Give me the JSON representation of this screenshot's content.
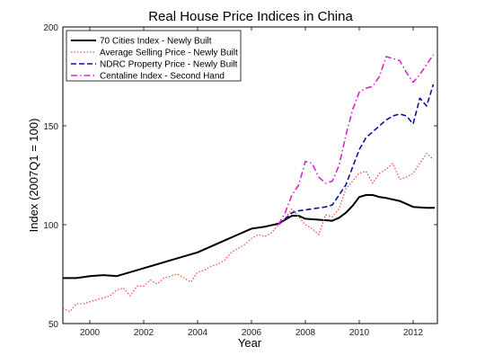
{
  "chart_data": {
    "type": "line",
    "title": "Real House Price Indices in China",
    "xlabel": "Year",
    "ylabel": "Index (2007Q1 = 100)",
    "xlim": [
      1999,
      2012.9
    ],
    "ylim": [
      50,
      200
    ],
    "xticks": [
      2000,
      2002,
      2004,
      2006,
      2008,
      2010,
      2012
    ],
    "yticks": [
      50,
      100,
      150,
      200
    ],
    "grid": false,
    "legend_position": "top-left",
    "series": [
      {
        "name": "70 Cities Index - Newly Built",
        "color": "#000000",
        "style": "solid",
        "x": [
          1999.0,
          1999.5,
          2000.0,
          2000.5,
          2001.0,
          2001.5,
          2002.0,
          2002.5,
          2003.0,
          2003.5,
          2004.0,
          2004.5,
          2005.0,
          2005.5,
          2006.0,
          2006.5,
          2007.0,
          2007.25,
          2007.5,
          2007.75,
          2008.0,
          2008.5,
          2009.0,
          2009.25,
          2009.5,
          2009.75,
          2010.0,
          2010.25,
          2010.5,
          2010.75,
          2011.0,
          2011.5,
          2012.0,
          2012.5,
          2012.8
        ],
        "y": [
          73,
          73,
          74,
          74.5,
          74,
          76,
          78,
          80,
          82,
          84,
          86,
          89,
          92,
          95,
          98,
          99,
          100.5,
          102.5,
          104.5,
          104.5,
          103,
          102.5,
          102,
          103.5,
          106,
          109.5,
          114,
          115,
          115,
          114,
          113.5,
          112,
          109,
          108.5,
          108.5
        ]
      },
      {
        "name": "Average Selling Price - Newly Built",
        "color": "#e8504a",
        "style": "dotted",
        "x": [
          1999.0,
          1999.25,
          1999.5,
          1999.75,
          2000.0,
          2000.25,
          2000.5,
          2000.75,
          2001.0,
          2001.25,
          2001.5,
          2001.75,
          2002.0,
          2002.25,
          2002.5,
          2002.75,
          2003.0,
          2003.25,
          2003.5,
          2003.75,
          2004.0,
          2004.25,
          2004.5,
          2004.75,
          2005.0,
          2005.25,
          2005.5,
          2005.75,
          2006.0,
          2006.25,
          2006.5,
          2006.75,
          2007.0,
          2007.25,
          2007.5,
          2007.75,
          2008.0,
          2008.25,
          2008.5,
          2008.75,
          2009.0,
          2009.25,
          2009.5,
          2009.75,
          2010.0,
          2010.25,
          2010.5,
          2010.75,
          2011.0,
          2011.25,
          2011.5,
          2011.75,
          2012.0,
          2012.25,
          2012.5,
          2012.75
        ],
        "y": [
          58,
          56,
          60,
          60,
          61,
          62,
          63,
          64,
          67,
          68,
          64,
          69,
          69,
          72,
          70,
          73,
          74,
          75,
          73,
          71,
          76,
          77,
          79,
          80,
          82,
          86,
          88,
          90,
          93,
          95,
          94,
          96,
          100,
          103,
          108,
          104,
          100,
          98,
          95,
          105,
          104,
          108,
          118,
          122,
          126,
          127,
          121,
          126,
          128,
          131,
          123,
          124,
          126,
          131,
          136,
          133
        ]
      },
      {
        "name": "NDRC Property Price - Newly Built",
        "color": "#1010a0",
        "style": "dashed",
        "x": [
          2007.0,
          2007.25,
          2007.5,
          2007.75,
          2008.0,
          2008.25,
          2008.5,
          2008.75,
          2009.0,
          2009.25,
          2009.5,
          2009.75,
          2010.0,
          2010.25,
          2010.5,
          2010.75,
          2011.0,
          2011.25,
          2011.5,
          2011.75,
          2012.0,
          2012.25,
          2012.5,
          2012.75
        ],
        "y": [
          100,
          103,
          106,
          107,
          107.5,
          108,
          108.5,
          109,
          110,
          115,
          120,
          129,
          138,
          144,
          147,
          150,
          153,
          155,
          156,
          155,
          151,
          164,
          160,
          171
        ]
      },
      {
        "name": "Centaline Index - Second Hand",
        "color": "#e020d0",
        "style": "dashdot",
        "x": [
          2007.0,
          2007.25,
          2007.5,
          2007.75,
          2008.0,
          2008.25,
          2008.5,
          2008.75,
          2009.0,
          2009.25,
          2009.5,
          2009.75,
          2010.0,
          2010.25,
          2010.5,
          2010.75,
          2011.0,
          2011.25,
          2011.5,
          2011.75,
          2012.0,
          2012.25,
          2012.5,
          2012.75
        ],
        "y": [
          100,
          106,
          115,
          120,
          132,
          131,
          124,
          121,
          122,
          130,
          145,
          158,
          167,
          169,
          170,
          175,
          185,
          184,
          183,
          177,
          172,
          176,
          181,
          186
        ]
      }
    ]
  }
}
